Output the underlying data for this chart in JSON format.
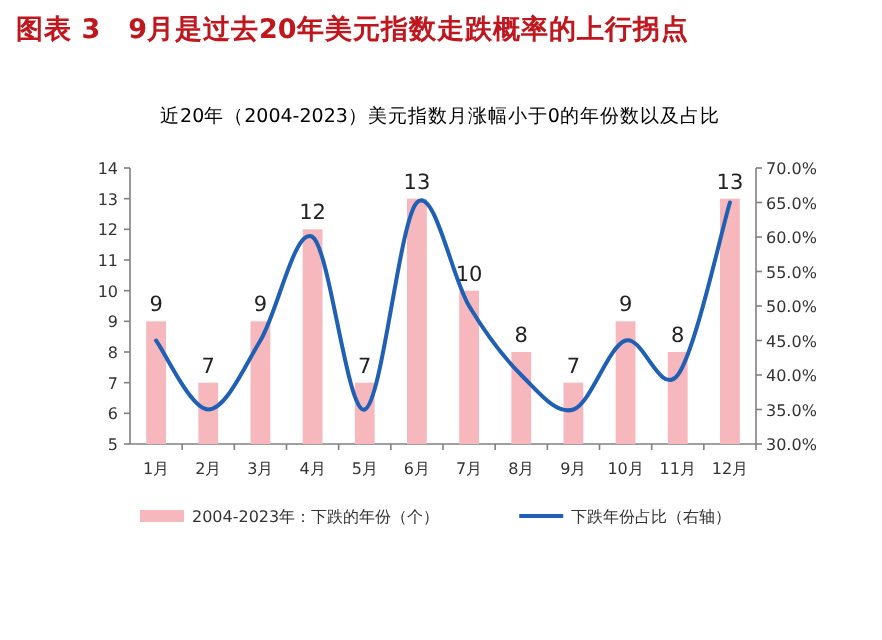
{
  "chart_data": {
    "type": "bar",
    "title": "图表 3　9月是过去20年美元指数走跌概率的上行拐点",
    "subtitle": "近20年（2004-2023）美元指数月涨幅小于0的年份数以及占比",
    "categories": [
      "1月",
      "2月",
      "3月",
      "4月",
      "5月",
      "6月",
      "7月",
      "8月",
      "9月",
      "10月",
      "11月",
      "12月"
    ],
    "series": [
      {
        "name": "2004-2023年：下跌的年份（个）",
        "color": "#f6b8bd",
        "values": [
          9,
          7,
          9,
          12,
          7,
          13,
          10,
          8,
          7,
          9,
          8,
          13
        ],
        "value_labels": [
          "9",
          "7",
          "9",
          "12",
          "7",
          "13",
          "10",
          "8",
          "7",
          "9",
          "8",
          "13"
        ]
      },
      {
        "name": "下跌年份占比（右轴）",
        "type": "line",
        "axis": "y2",
        "color": "#1f5fb4",
        "values": [
          45,
          35,
          45,
          60,
          35,
          65,
          50,
          40,
          35,
          45,
          40,
          65
        ]
      }
    ],
    "ylim": [
      5,
      14
    ],
    "yticks": [
      5,
      6,
      7,
      8,
      9,
      10,
      11,
      12,
      13,
      14
    ],
    "y2lim": [
      30,
      70
    ],
    "y2ticks": [
      {
        "value": 30,
        "label": "30.0%"
      },
      {
        "value": 35,
        "label": "35.0%"
      },
      {
        "value": 40,
        "label": "40.0%"
      },
      {
        "value": 45,
        "label": "45.0%"
      },
      {
        "value": 50,
        "label": "50.0%"
      },
      {
        "value": 55,
        "label": "55.0%"
      },
      {
        "value": 60,
        "label": "60.0%"
      },
      {
        "value": 65,
        "label": "65.0%"
      },
      {
        "value": 70,
        "label": "70.0%"
      }
    ],
    "legend": "bottom",
    "grid": false
  }
}
